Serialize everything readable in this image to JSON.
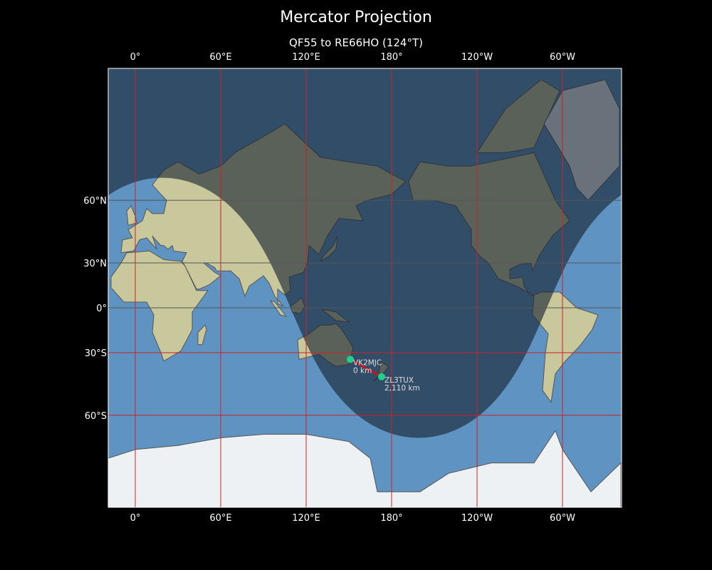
{
  "title": "Mercator Projection",
  "subtitle": "QF55 to RE66HO (124°T)",
  "map": {
    "projection": "mercator",
    "lon_range": [
      -19,
      341
    ],
    "lat_range": [
      -84,
      87
    ],
    "lon_ticks": [
      {
        "lon": 0,
        "label": "0°"
      },
      {
        "lon": 60,
        "label": "60°E"
      },
      {
        "lon": 120,
        "label": "120°E"
      },
      {
        "lon": 180,
        "label": "180°"
      },
      {
        "lon": 240,
        "label": "120°W"
      },
      {
        "lon": 300,
        "label": "60°W"
      }
    ],
    "lat_ticks": [
      {
        "lat": 60,
        "label": "60°N",
        "color": "#555555"
      },
      {
        "lat": 30,
        "label": "30°N",
        "color": "#555555"
      },
      {
        "lat": 0,
        "label": "0°",
        "color": "#555555"
      },
      {
        "lat": -30,
        "label": "30°S",
        "color": "#cc2222"
      },
      {
        "lat": -60,
        "label": "60°S",
        "color": "#cc2222"
      }
    ],
    "meridian_color": "#cc2222",
    "ocean_color": "#5f93c2",
    "land_color": "#c9c79c",
    "ice_color": "#eef1f4",
    "night_overlay": "day/night terminator shading",
    "path_color": "#ff0000",
    "marker_color": "#1fd08c"
  },
  "stations": [
    {
      "call": "VK2MJC",
      "distance": "0 km",
      "lat": -34,
      "lon": 151
    },
    {
      "call": "ZL3TUX",
      "distance": "2,110 km",
      "lat": -43.5,
      "lon": 173
    }
  ]
}
